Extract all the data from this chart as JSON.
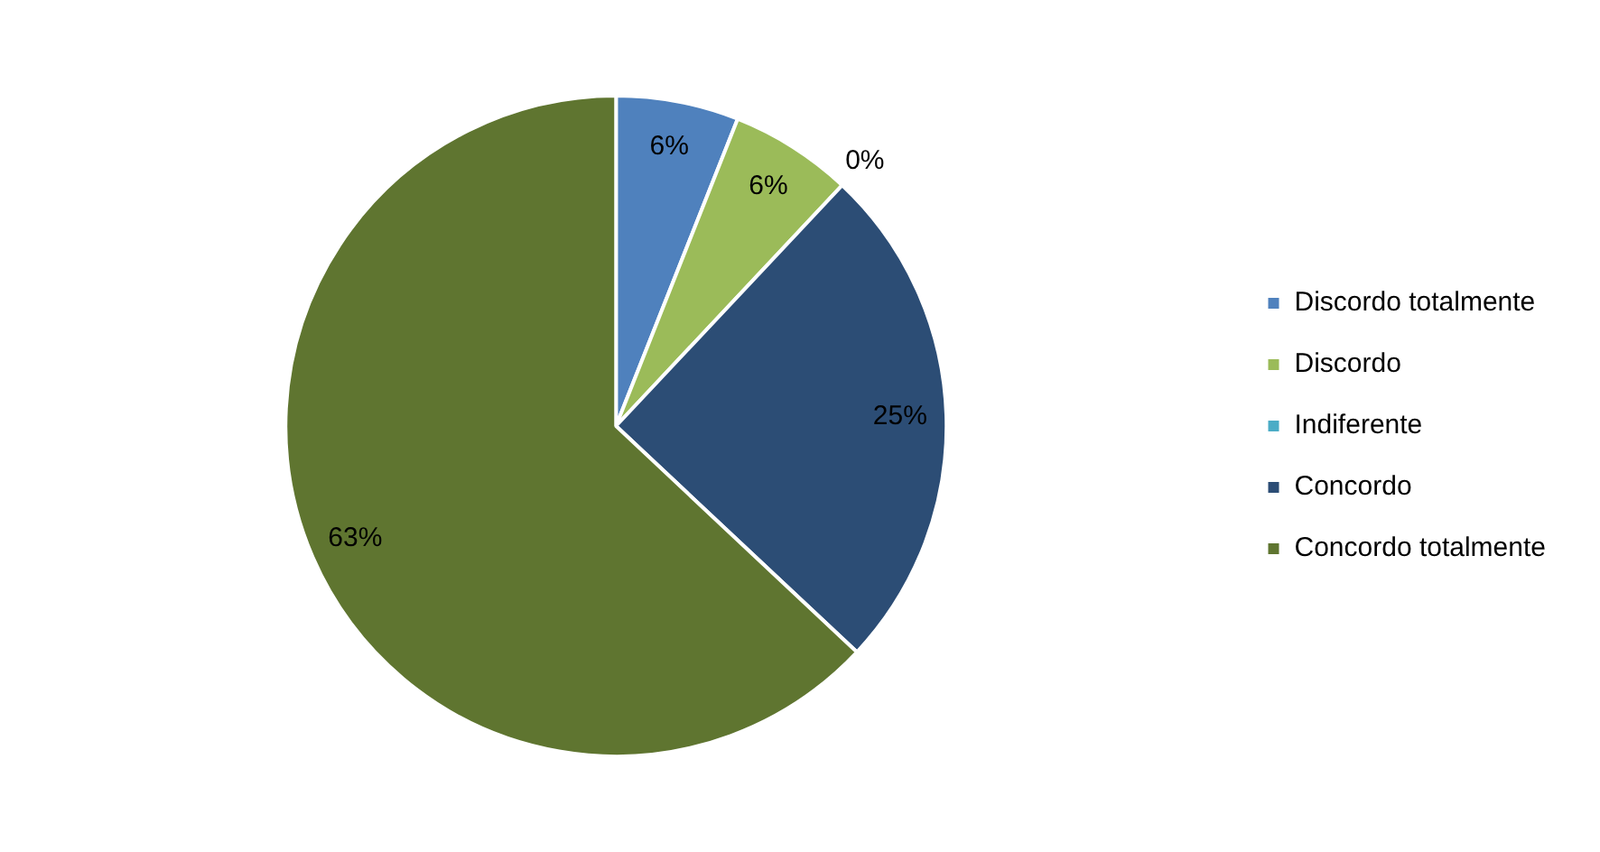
{
  "chart_data": {
    "type": "pie",
    "categories": [
      "Discordo totalmente",
      "Discordo",
      "Indiferente",
      "Concordo",
      "Concordo totalmente"
    ],
    "values": [
      6,
      6,
      0,
      25,
      63
    ],
    "colors": [
      "#4f81bd",
      "#9bbb59",
      "#4bacc6",
      "#2c4d75",
      "#5f7530"
    ],
    "value_labels": [
      "6%",
      "6%",
      "0%",
      "25%",
      "63%"
    ],
    "legend": "right"
  }
}
